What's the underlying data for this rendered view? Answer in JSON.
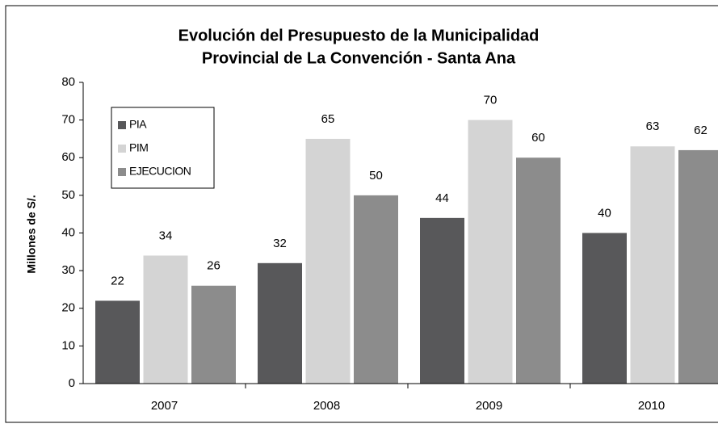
{
  "chart_data": {
    "type": "bar",
    "title": [
      "Evolución del Presupuesto de la Municipalidad",
      "Provincial de La Convención - Santa Ana"
    ],
    "y_label": "Millones de S/.",
    "categories": [
      "2007",
      "2008",
      "2009",
      "2010"
    ],
    "series": [
      {
        "name": "PIA",
        "color": "#58585a",
        "values": [
          22,
          32,
          44,
          40
        ]
      },
      {
        "name": "PIM",
        "color": "#d4d4d4",
        "values": [
          34,
          65,
          70,
          63
        ]
      },
      {
        "name": "EJECUCION",
        "color": "#8c8c8c",
        "values": [
          26,
          50,
          60,
          62
        ]
      }
    ],
    "ylim": [
      0,
      80
    ],
    "yticks": [
      0,
      10,
      20,
      30,
      40,
      50,
      60,
      70,
      80
    ],
    "grid": false,
    "legend": "top-left",
    "data_labels": true
  }
}
